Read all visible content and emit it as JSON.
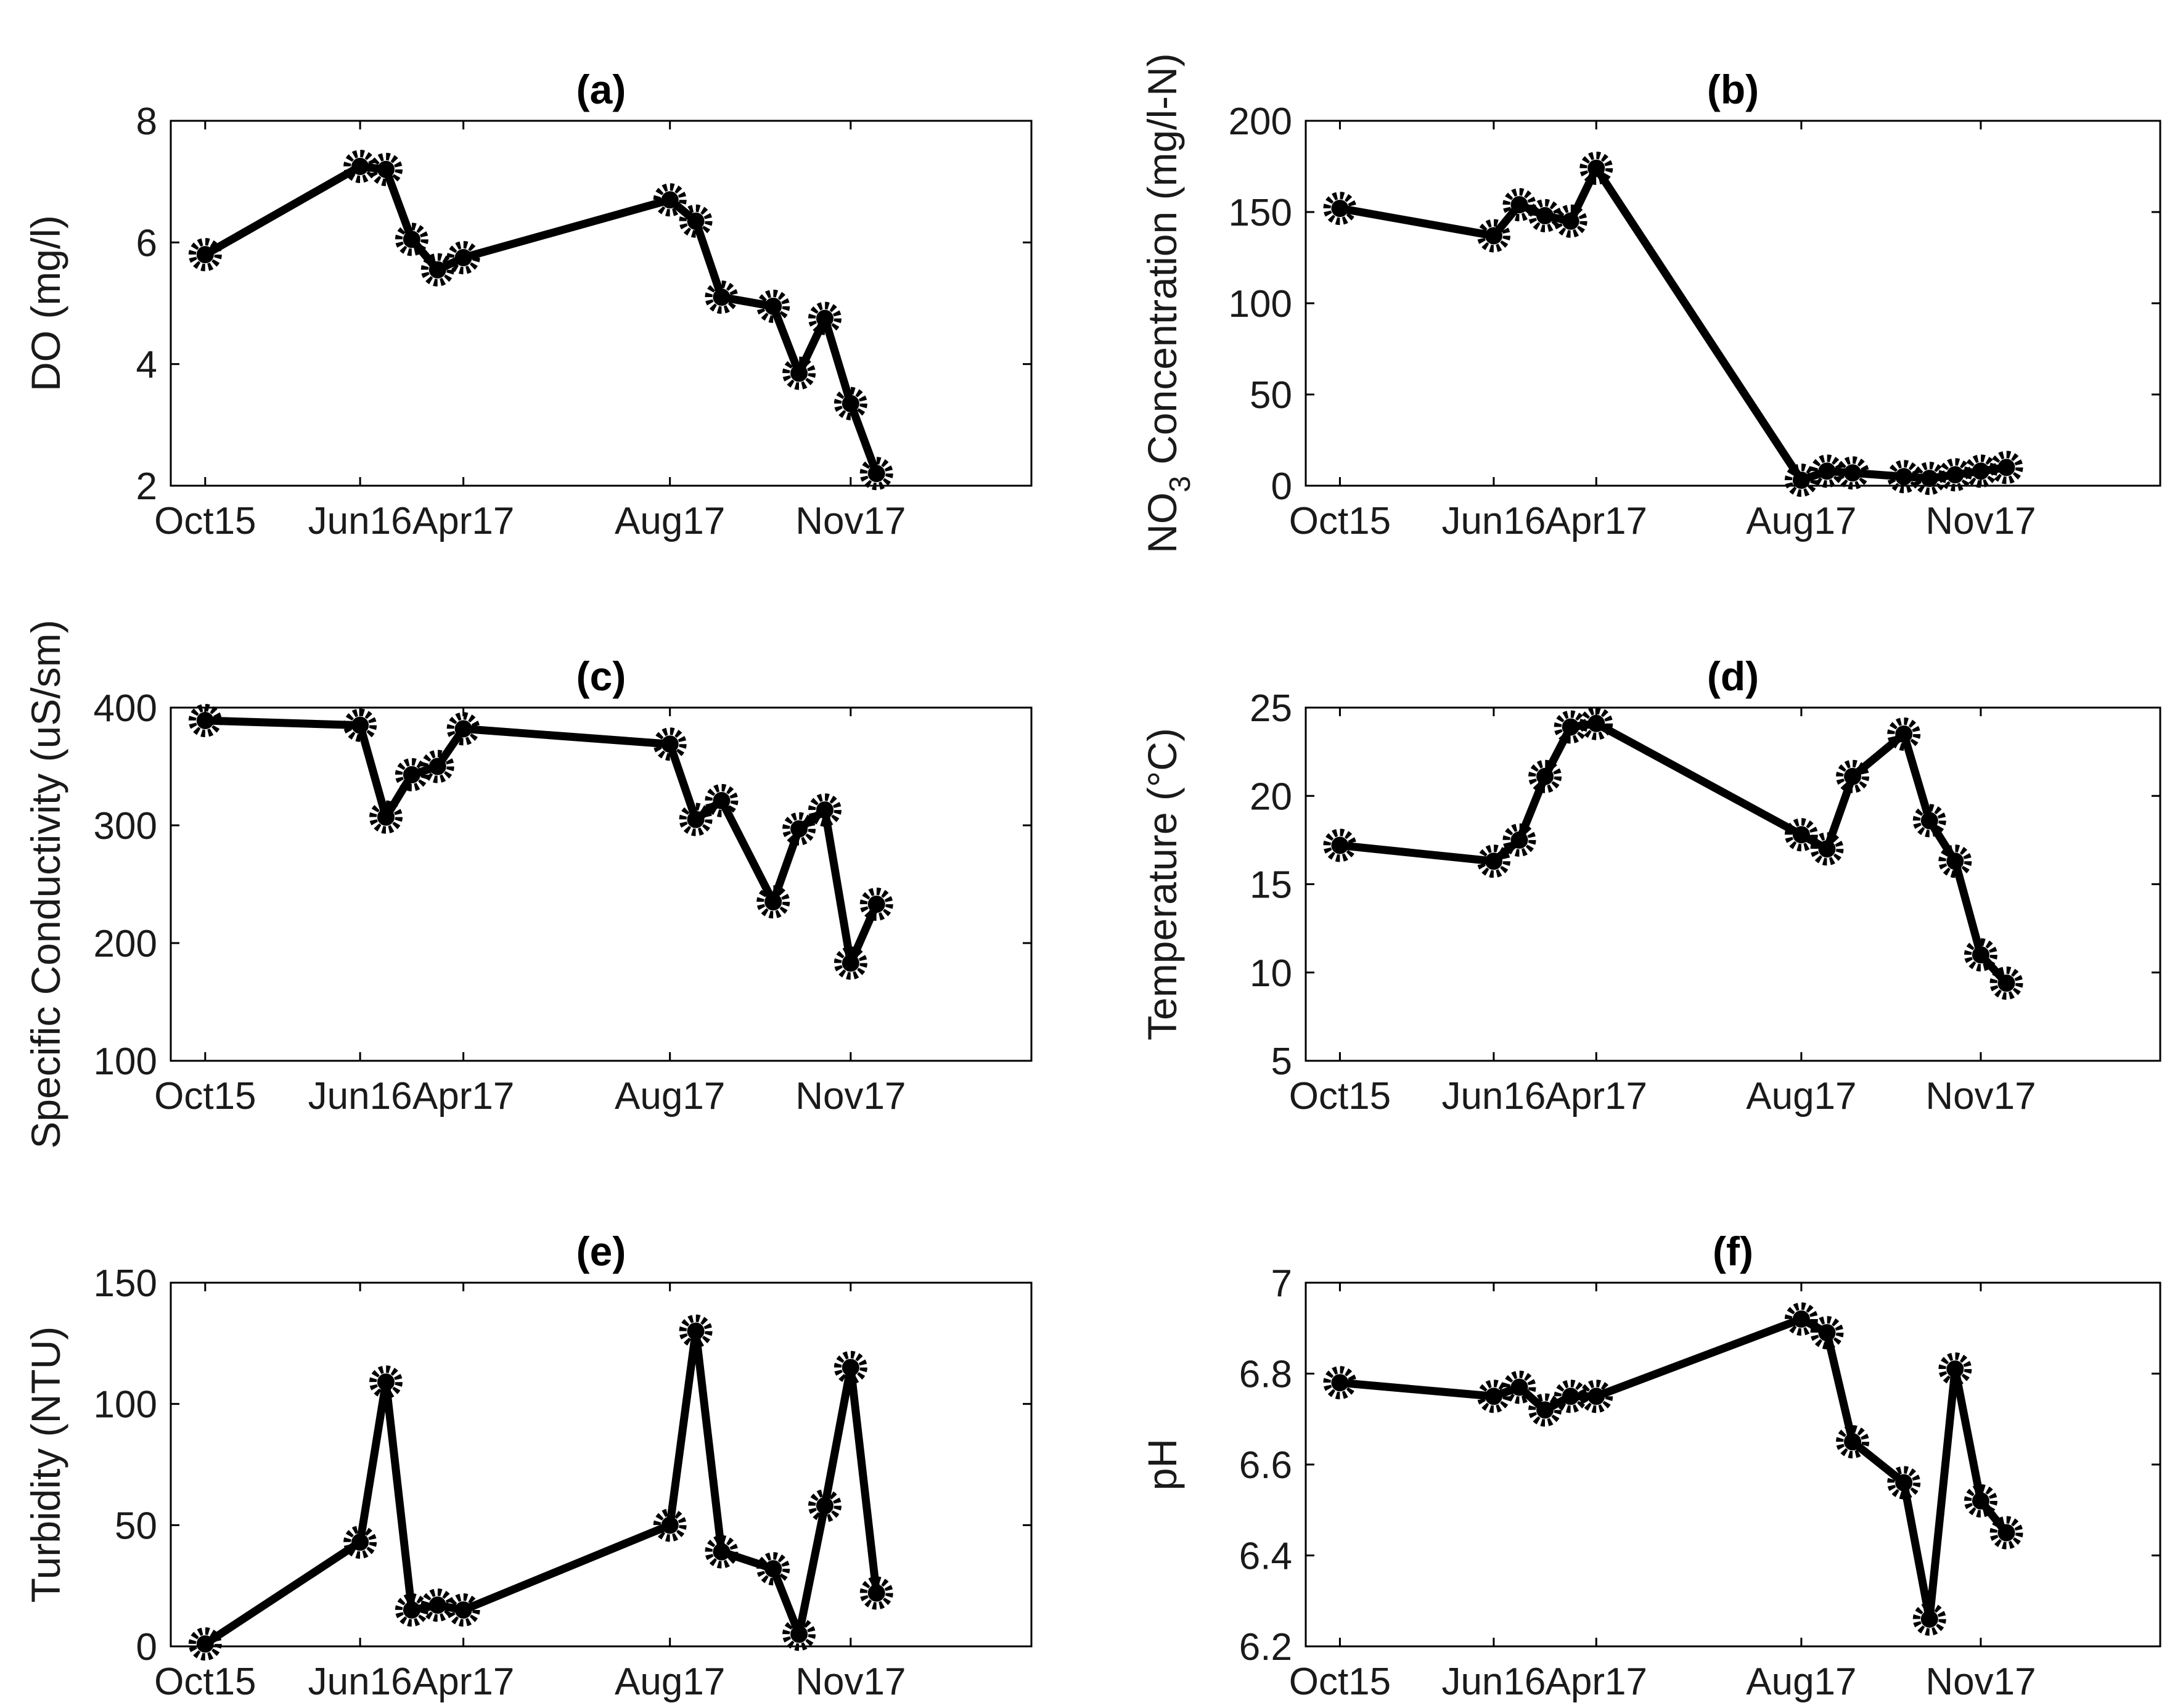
{
  "figure": {
    "x_tick_labels": [
      "Oct15",
      "Jun16",
      "Apr17",
      "Aug17",
      "Nov17"
    ]
  },
  "chart_data": [
    {
      "id": "a",
      "type": "line",
      "title": "(a)",
      "ylabel": "DO (mg/l)",
      "ylim": [
        2,
        8
      ],
      "yticks": [
        2,
        4,
        6,
        8
      ],
      "ytick_labels": [
        "2",
        "4",
        "6",
        "8"
      ],
      "xlim": [
        0,
        1
      ],
      "categories": [
        "Oct15",
        "Jun16",
        "Apr17",
        "Aug17",
        "Nov17"
      ],
      "x": [
        0.04,
        0.22,
        0.25,
        0.28,
        0.31,
        0.34,
        0.58,
        0.61,
        0.64,
        0.7,
        0.73,
        0.76,
        0.79,
        0.82
      ],
      "values": [
        5.8,
        7.25,
        7.2,
        6.05,
        5.55,
        5.75,
        6.7,
        6.35,
        5.1,
        4.95,
        3.85,
        4.75,
        3.35,
        2.2
      ]
    },
    {
      "id": "b",
      "type": "line",
      "title": "(b)",
      "ylabel": "NO3 Concentration (mg/l-N)",
      "ylabel_parts": {
        "main": "NO",
        "sub": "3",
        "rest": " Concentration (mg/l-N)"
      },
      "ylim": [
        0,
        200
      ],
      "yticks": [
        0,
        50,
        100,
        150,
        200
      ],
      "ytick_labels": [
        "0",
        "50",
        "100",
        "150",
        "200"
      ],
      "xlim": [
        0,
        1
      ],
      "categories": [
        "Oct15",
        "Jun16",
        "Apr17",
        "Aug17",
        "Nov17"
      ],
      "x": [
        0.04,
        0.22,
        0.25,
        0.28,
        0.31,
        0.34,
        0.58,
        0.61,
        0.64,
        0.7,
        0.73,
        0.76,
        0.79,
        0.82
      ],
      "values": [
        152,
        137,
        154,
        148,
        145,
        174,
        3,
        8,
        7,
        5,
        4,
        6,
        8,
        10
      ]
    },
    {
      "id": "c",
      "type": "line",
      "title": "(c)",
      "ylabel": "Specific Conductivity (uS/sm)",
      "ylim": [
        100,
        400
      ],
      "yticks": [
        100,
        200,
        300,
        400
      ],
      "ytick_labels": [
        "100",
        "200",
        "300",
        "400"
      ],
      "xlim": [
        0,
        1
      ],
      "categories": [
        "Oct15",
        "Jun16",
        "Apr17",
        "Aug17",
        "Nov17"
      ],
      "x": [
        0.04,
        0.22,
        0.25,
        0.28,
        0.31,
        0.34,
        0.58,
        0.61,
        0.64,
        0.7,
        0.73,
        0.76,
        0.79,
        0.82
      ],
      "values": [
        389,
        385,
        307,
        343,
        350,
        382,
        369,
        305,
        321,
        235,
        297,
        313,
        183,
        233
      ]
    },
    {
      "id": "d",
      "type": "line",
      "title": "(d)",
      "ylabel": "Temperature (°C)",
      "ylim": [
        5,
        25
      ],
      "yticks": [
        5,
        10,
        15,
        20,
        25
      ],
      "ytick_labels": [
        "5",
        "10",
        "15",
        "20",
        "25"
      ],
      "xlim": [
        0,
        1
      ],
      "categories": [
        "Oct15",
        "Jun16",
        "Apr17",
        "Aug17",
        "Nov17"
      ],
      "x": [
        0.04,
        0.22,
        0.25,
        0.28,
        0.31,
        0.34,
        0.58,
        0.61,
        0.64,
        0.7,
        0.73,
        0.76,
        0.79,
        0.82
      ],
      "values": [
        17.2,
        16.3,
        17.5,
        21.1,
        23.9,
        24.1,
        17.8,
        17.0,
        21.1,
        23.5,
        18.6,
        16.3,
        11.0,
        9.4
      ]
    },
    {
      "id": "e",
      "type": "line",
      "title": "(e)",
      "ylabel": "Turbidity (NTU)",
      "ylim": [
        0,
        150
      ],
      "yticks": [
        0,
        50,
        100,
        150
      ],
      "ytick_labels": [
        "0",
        "50",
        "100",
        "150"
      ],
      "xlim": [
        0,
        1
      ],
      "categories": [
        "Oct15",
        "Jun16",
        "Apr17",
        "Aug17",
        "Nov17"
      ],
      "x": [
        0.04,
        0.22,
        0.25,
        0.28,
        0.31,
        0.34,
        0.58,
        0.61,
        0.64,
        0.7,
        0.73,
        0.76,
        0.79,
        0.82
      ],
      "values": [
        1,
        43,
        109,
        15,
        17,
        15,
        50,
        130,
        39,
        32,
        5,
        58,
        115,
        22
      ]
    },
    {
      "id": "f",
      "type": "line",
      "title": "(f)",
      "ylabel": "pH",
      "ylim": [
        6.2,
        7.0
      ],
      "yticks": [
        6.2,
        6.4,
        6.6,
        6.8,
        7.0
      ],
      "ytick_labels": [
        "6.2",
        "6.4",
        "6.6",
        "6.8",
        "7"
      ],
      "xlim": [
        0,
        1
      ],
      "categories": [
        "Oct15",
        "Jun16",
        "Apr17",
        "Aug17",
        "Nov17"
      ],
      "x": [
        0.04,
        0.22,
        0.25,
        0.28,
        0.31,
        0.34,
        0.58,
        0.61,
        0.64,
        0.7,
        0.73,
        0.76,
        0.79,
        0.82
      ],
      "values": [
        6.78,
        6.75,
        6.77,
        6.72,
        6.75,
        6.75,
        6.92,
        6.89,
        6.65,
        6.56,
        6.26,
        6.81,
        6.52,
        6.45
      ]
    }
  ]
}
